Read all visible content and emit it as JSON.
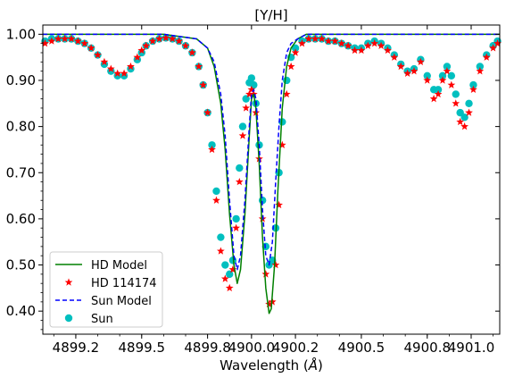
{
  "chart_data": {
    "type": "line",
    "title": "[Y/H]",
    "xlabel": "Wavelength (Å)",
    "xlabel_text": "Wavelength (",
    "xlabel_unit": "Å",
    "xlabel_close": ")",
    "ylabel": "",
    "xlim": [
      4899.05,
      4901.13
    ],
    "ylim": [
      0.35,
      1.02
    ],
    "x_ticks": [
      4899.2,
      4899.5,
      4899.8,
      4900.0,
      4900.2,
      4900.5,
      4900.8,
      4901.0
    ],
    "x_tick_labels": [
      "4899.2",
      "4899.5",
      "4899.8",
      "4900.0",
      "4900.2",
      "4900.5",
      "4900.8",
      "4901.0"
    ],
    "y_ticks": [
      0.4,
      0.5,
      0.6,
      0.7,
      0.8,
      0.9,
      1.0
    ],
    "y_tick_labels": [
      "0.40",
      "0.50",
      "0.60",
      "0.70",
      "0.80",
      "0.90",
      "1.00"
    ],
    "grid": false,
    "legend_position": "lower-left",
    "series": [
      {
        "name": "HD Model",
        "style": "solid-line",
        "color": "#008000",
        "x": [
          4899.05,
          4899.6,
          4899.75,
          4899.8,
          4899.83,
          4899.86,
          4899.88,
          4899.9,
          4899.92,
          4899.935,
          4899.95,
          4899.97,
          4899.99,
          4900.0,
          4900.01,
          4900.02,
          4900.035,
          4900.05,
          4900.065,
          4900.08,
          4900.09,
          4900.105,
          4900.12,
          4900.14,
          4900.16,
          4900.18,
          4900.21,
          4900.25,
          4900.3,
          4901.13
        ],
        "y": [
          1.0,
          1.0,
          0.99,
          0.97,
          0.93,
          0.85,
          0.75,
          0.61,
          0.5,
          0.46,
          0.49,
          0.61,
          0.78,
          0.86,
          0.87,
          0.84,
          0.72,
          0.56,
          0.45,
          0.395,
          0.405,
          0.5,
          0.66,
          0.84,
          0.93,
          0.97,
          0.99,
          1.0,
          1.0,
          1.0
        ]
      },
      {
        "name": "HD 114174",
        "style": "star-markers",
        "color": "#ff0000",
        "x": [
          4899.06,
          4899.09,
          4899.12,
          4899.15,
          4899.18,
          4899.21,
          4899.24,
          4899.27,
          4899.3,
          4899.33,
          4899.36,
          4899.39,
          4899.42,
          4899.45,
          4899.48,
          4899.5,
          4899.52,
          4899.55,
          4899.58,
          4899.61,
          4899.64,
          4899.67,
          4899.7,
          4899.73,
          4899.76,
          4899.78,
          4899.8,
          4899.82,
          4899.84,
          4899.86,
          4899.88,
          4899.9,
          4899.915,
          4899.93,
          4899.945,
          4899.96,
          4899.975,
          4899.99,
          4900.0,
          4900.01,
          4900.02,
          4900.035,
          4900.05,
          4900.065,
          4900.08,
          4900.095,
          4900.11,
          4900.125,
          4900.14,
          4900.16,
          4900.18,
          4900.2,
          4900.23,
          4900.26,
          4900.29,
          4900.32,
          4900.35,
          4900.38,
          4900.41,
          4900.44,
          4900.47,
          4900.5,
          4900.53,
          4900.56,
          4900.59,
          4900.62,
          4900.65,
          4900.68,
          4900.71,
          4900.74,
          4900.77,
          4900.8,
          4900.83,
          4900.85,
          4900.87,
          4900.89,
          4900.91,
          4900.93,
          4900.95,
          4900.97,
          4900.99,
          4901.01,
          4901.04,
          4901.07,
          4901.1,
          4901.12
        ],
        "y": [
          0.98,
          0.985,
          0.99,
          0.99,
          0.99,
          0.985,
          0.98,
          0.97,
          0.955,
          0.94,
          0.925,
          0.915,
          0.915,
          0.93,
          0.95,
          0.965,
          0.975,
          0.985,
          0.99,
          0.992,
          0.99,
          0.985,
          0.975,
          0.96,
          0.93,
          0.89,
          0.83,
          0.75,
          0.64,
          0.53,
          0.47,
          0.45,
          0.49,
          0.58,
          0.68,
          0.78,
          0.84,
          0.87,
          0.88,
          0.87,
          0.83,
          0.73,
          0.6,
          0.48,
          0.415,
          0.42,
          0.5,
          0.63,
          0.76,
          0.87,
          0.93,
          0.96,
          0.98,
          0.99,
          0.99,
          0.99,
          0.985,
          0.985,
          0.98,
          0.975,
          0.965,
          0.965,
          0.975,
          0.98,
          0.975,
          0.965,
          0.95,
          0.93,
          0.915,
          0.92,
          0.94,
          0.9,
          0.86,
          0.87,
          0.9,
          0.92,
          0.89,
          0.85,
          0.81,
          0.8,
          0.83,
          0.88,
          0.92,
          0.95,
          0.97,
          0.98
        ]
      },
      {
        "name": "Sun Model",
        "style": "dashed-line",
        "color": "#0000ff",
        "x": [
          4899.05,
          4899.6,
          4899.75,
          4899.8,
          4899.83,
          4899.86,
          4899.88,
          4899.9,
          4899.92,
          4899.935,
          4899.95,
          4899.97,
          4899.99,
          4900.0,
          4900.01,
          4900.02,
          4900.035,
          4900.05,
          4900.065,
          4900.08,
          4900.095,
          4900.11,
          4900.125,
          4900.14,
          4900.16,
          4900.18,
          4900.21,
          4900.25,
          4900.3,
          4901.13
        ],
        "y": [
          1.0,
          1.0,
          0.99,
          0.97,
          0.94,
          0.87,
          0.78,
          0.64,
          0.52,
          0.49,
          0.52,
          0.64,
          0.8,
          0.87,
          0.88,
          0.86,
          0.76,
          0.62,
          0.52,
          0.5,
          0.55,
          0.68,
          0.8,
          0.9,
          0.96,
          0.98,
          0.99,
          1.0,
          1.0,
          1.0
        ]
      },
      {
        "name": "Sun",
        "style": "circle-markers",
        "color": "#00bfbf",
        "x": [
          4899.06,
          4899.09,
          4899.12,
          4899.15,
          4899.18,
          4899.21,
          4899.24,
          4899.27,
          4899.3,
          4899.33,
          4899.36,
          4899.39,
          4899.42,
          4899.45,
          4899.48,
          4899.5,
          4899.52,
          4899.55,
          4899.58,
          4899.61,
          4899.64,
          4899.67,
          4899.7,
          4899.73,
          4899.76,
          4899.78,
          4899.8,
          4899.82,
          4899.84,
          4899.86,
          4899.88,
          4899.9,
          4899.915,
          4899.93,
          4899.945,
          4899.96,
          4899.975,
          4899.99,
          4900.0,
          4900.01,
          4900.02,
          4900.035,
          4900.05,
          4900.065,
          4900.08,
          4900.095,
          4900.11,
          4900.125,
          4900.14,
          4900.16,
          4900.18,
          4900.2,
          4900.23,
          4900.26,
          4900.29,
          4900.32,
          4900.35,
          4900.38,
          4900.41,
          4900.44,
          4900.47,
          4900.5,
          4900.53,
          4900.56,
          4900.59,
          4900.62,
          4900.65,
          4900.68,
          4900.71,
          4900.74,
          4900.77,
          4900.8,
          4900.83,
          4900.85,
          4900.87,
          4900.89,
          4900.91,
          4900.93,
          4900.95,
          4900.97,
          4900.99,
          4901.01,
          4901.04,
          4901.07,
          4901.1,
          4901.12
        ],
        "y": [
          0.985,
          0.99,
          0.99,
          0.99,
          0.99,
          0.985,
          0.98,
          0.97,
          0.955,
          0.935,
          0.92,
          0.91,
          0.91,
          0.925,
          0.945,
          0.96,
          0.975,
          0.985,
          0.99,
          0.992,
          0.99,
          0.985,
          0.975,
          0.96,
          0.93,
          0.89,
          0.83,
          0.76,
          0.66,
          0.56,
          0.5,
          0.48,
          0.51,
          0.6,
          0.71,
          0.8,
          0.86,
          0.895,
          0.905,
          0.89,
          0.85,
          0.76,
          0.64,
          0.54,
          0.5,
          0.51,
          0.58,
          0.7,
          0.81,
          0.9,
          0.95,
          0.97,
          0.985,
          0.99,
          0.99,
          0.99,
          0.985,
          0.985,
          0.98,
          0.975,
          0.97,
          0.97,
          0.98,
          0.985,
          0.98,
          0.97,
          0.955,
          0.935,
          0.92,
          0.925,
          0.945,
          0.91,
          0.88,
          0.88,
          0.91,
          0.93,
          0.91,
          0.87,
          0.83,
          0.82,
          0.85,
          0.89,
          0.93,
          0.955,
          0.975,
          0.985
        ]
      }
    ]
  }
}
